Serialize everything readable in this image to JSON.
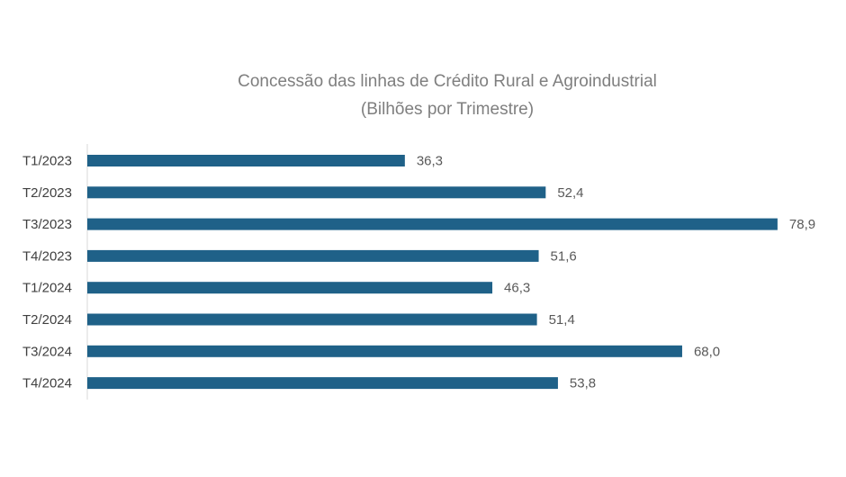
{
  "chart_data": {
    "type": "bar",
    "orientation": "horizontal",
    "title": "Concessão das linhas de Crédito Rural e Agroindustrial",
    "subtitle": "(Bilhões por Trimestre)",
    "categories": [
      "T1/2023",
      "T2/2023",
      "T3/2023",
      "T4/2023",
      "T1/2024",
      "T2/2024",
      "T3/2024",
      "T4/2024"
    ],
    "values": [
      36.3,
      52.4,
      78.9,
      51.6,
      46.3,
      51.4,
      68.0,
      53.8
    ],
    "value_labels": [
      "36,3",
      "52,4",
      "78,9",
      "51,6",
      "46,3",
      "51,4",
      "68,0",
      "53,8"
    ],
    "xlim": [
      0,
      80
    ],
    "grid": false,
    "legend": "none",
    "bar_color": "#1f6188"
  }
}
